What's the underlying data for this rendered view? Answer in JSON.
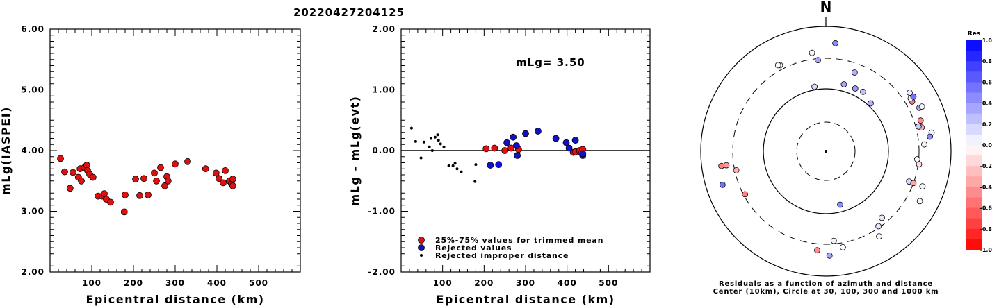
{
  "page_title": "20220427204125",
  "chart_data": [
    {
      "type": "scatter",
      "xlabel": "Epicentral distance (km)",
      "ylabel": "mLg(IASPEI)",
      "xlim": [
        0,
        600
      ],
      "ylim": [
        2.0,
        6.0
      ],
      "xticks": [
        "100",
        "200",
        "300",
        "400",
        "500"
      ],
      "yticks": [
        "2.00",
        "3.00",
        "4.00",
        "5.00",
        "6.00"
      ],
      "series": [
        {
          "color": "#dd1111",
          "points": [
            [
              25,
              3.87
            ],
            [
              35,
              3.65
            ],
            [
              48,
              3.38
            ],
            [
              55,
              3.64
            ],
            [
              68,
              3.56
            ],
            [
              72,
              3.7
            ],
            [
              75,
              3.5
            ],
            [
              82,
              3.72
            ],
            [
              88,
              3.76
            ],
            [
              90,
              3.67
            ],
            [
              95,
              3.61
            ],
            [
              103,
              3.56
            ],
            [
              115,
              3.25
            ],
            [
              125,
              3.25
            ],
            [
              130,
              3.29
            ],
            [
              135,
              3.2
            ],
            [
              145,
              3.15
            ],
            [
              178,
              2.99
            ],
            [
              180,
              3.27
            ],
            [
              205,
              3.53
            ],
            [
              215,
              3.26
            ],
            [
              225,
              3.54
            ],
            [
              235,
              3.27
            ],
            [
              250,
              3.63
            ],
            [
              255,
              3.5
            ],
            [
              265,
              3.72
            ],
            [
              275,
              3.42
            ],
            [
              280,
              3.57
            ],
            [
              283,
              3.5
            ],
            [
              300,
              3.78
            ],
            [
              330,
              3.82
            ],
            [
              373,
              3.7
            ],
            [
              398,
              3.63
            ],
            [
              405,
              3.54
            ],
            [
              415,
              3.47
            ],
            [
              420,
              3.67
            ],
            [
              430,
              3.5
            ],
            [
              435,
              3.45
            ],
            [
              438,
              3.53
            ],
            [
              438,
              3.42
            ]
          ]
        }
      ]
    },
    {
      "type": "scatter",
      "xlabel": "Epicentral distance (km)",
      "ylabel": "mLg - mLg(evt)",
      "xlim": [
        0,
        600
      ],
      "ylim": [
        -2.0,
        2.0
      ],
      "xticks": [
        "100",
        "200",
        "300",
        "400",
        "500"
      ],
      "yticks": [
        "-2.00",
        "-1.00",
        "0.00",
        "1.00",
        "2.00"
      ],
      "annotation": "mLg= 3.50",
      "legend": [
        {
          "label": "25%-75% values for trimmed mean",
          "color": "#dd1111"
        },
        {
          "label": "Rejected values",
          "color": "#1111cc"
        },
        {
          "label": "Rejected improper distance",
          "color": "#000000"
        }
      ],
      "series": [
        {
          "color": "#dd1111",
          "points": [
            [
              205,
              0.03
            ],
            [
              225,
              0.04
            ],
            [
              250,
              0.0
            ],
            [
              265,
              0.04
            ],
            [
              283,
              0.02
            ],
            [
              415,
              -0.03
            ],
            [
              420,
              -0.02
            ],
            [
              430,
              0.0
            ],
            [
              435,
              -0.04
            ],
            [
              438,
              0.02
            ]
          ]
        },
        {
          "color": "#1111cc",
          "points": [
            [
              215,
              -0.24
            ],
            [
              235,
              -0.23
            ],
            [
              255,
              0.13
            ],
            [
              270,
              0.22
            ],
            [
              278,
              0.08
            ],
            [
              280,
              -0.08
            ],
            [
              300,
              0.28
            ],
            [
              330,
              0.32
            ],
            [
              373,
              0.2
            ],
            [
              398,
              0.13
            ],
            [
              405,
              0.04
            ],
            [
              420,
              0.17
            ],
            [
              438,
              -0.08
            ],
            [
              438,
              -0.05
            ]
          ]
        },
        {
          "color": "#000000",
          "points": [
            [
              25,
              0.37
            ],
            [
              35,
              0.15
            ],
            [
              48,
              -0.12
            ],
            [
              55,
              0.14
            ],
            [
              68,
              0.06
            ],
            [
              72,
              0.2
            ],
            [
              75,
              0.0
            ],
            [
              82,
              0.22
            ],
            [
              88,
              0.26
            ],
            [
              90,
              0.17
            ],
            [
              95,
              0.11
            ],
            [
              103,
              0.06
            ],
            [
              115,
              -0.25
            ],
            [
              125,
              -0.25
            ],
            [
              130,
              -0.21
            ],
            [
              135,
              -0.3
            ],
            [
              145,
              -0.35
            ],
            [
              178,
              -0.51
            ],
            [
              180,
              -0.23
            ]
          ]
        }
      ]
    },
    {
      "type": "polar",
      "north_label": "N",
      "caption_lines": [
        "Residuals as a function of azimuth and distance",
        "Center (10km), Circle at 30, 100, 300 and 1000 km"
      ],
      "colorbar": {
        "title": "Res",
        "ticks": [
          "1.0",
          "0.8",
          "0.6",
          "0.4",
          "0.2",
          "0.0",
          "-0.2",
          "-0.4",
          "-0.6",
          "-0.8",
          "-1.0"
        ]
      },
      "stations": [
        {
          "azimuth": 332,
          "distance": 400,
          "residual": 0.05
        },
        {
          "azimuth": 331,
          "distance": 420,
          "residual": 0.02
        },
        {
          "azimuth": 352,
          "distance": 440,
          "residual": 0.03
        },
        {
          "azimuth": 5,
          "distance": 640,
          "residual": 0.45
        },
        {
          "azimuth": 15,
          "distance": 145,
          "residual": 0.35
        },
        {
          "azimuth": 25,
          "distance": 145,
          "residual": 0.4
        },
        {
          "azimuth": 32,
          "distance": 150,
          "residual": 0.25
        },
        {
          "azimuth": 43,
          "distance": 120,
          "residual": 0.3
        },
        {
          "azimuth": 60,
          "distance": 440,
          "residual": -0.55
        },
        {
          "azimuth": 58,
          "distance": 450,
          "residual": 0.05
        },
        {
          "azimuth": 55,
          "distance": 500,
          "residual": 0.07
        },
        {
          "azimuth": 58,
          "distance": 520,
          "residual": 0.55
        },
        {
          "azimuth": 65,
          "distance": 520,
          "residual": 0.3
        },
        {
          "azimuth": 72,
          "distance": 440,
          "residual": -0.45
        },
        {
          "azimuth": 65,
          "distance": 580,
          "residual": 0.05
        },
        {
          "azimuth": 76,
          "distance": 420,
          "residual": -0.35
        },
        {
          "azimuth": 80,
          "distance": 610,
          "residual": 0.05
        },
        {
          "azimuth": 86,
          "distance": 420,
          "residual": 0.05
        },
        {
          "azimuth": 82,
          "distance": 560,
          "residual": 0.45
        },
        {
          "azimuth": 95,
          "distance": 290,
          "residual": 0.04
        },
        {
          "azimuth": 110,
          "distance": 270,
          "residual": 0.15
        },
        {
          "azimuth": 110,
          "distance": 300,
          "residual": -0.35
        },
        {
          "azimuth": 110,
          "distance": 510,
          "residual": 0.05
        },
        {
          "azimuth": 118,
          "distance": 590,
          "residual": 0.03
        },
        {
          "azimuth": 140,
          "distance": 260,
          "residual": 0.1
        },
        {
          "azimuth": 145,
          "distance": 290,
          "residual": 0.1
        },
        {
          "azimuth": 148,
          "distance": 460,
          "residual": 0.03
        },
        {
          "azimuth": 165,
          "distance": 85,
          "residual": 0.45
        },
        {
          "azimuth": 175,
          "distance": 280,
          "residual": 0.05
        },
        {
          "azimuth": 185,
          "distance": 440,
          "residual": -0.45
        },
        {
          "azimuth": 178,
          "distance": 550,
          "residual": 0.35
        },
        {
          "azimuth": 258,
          "distance": 290,
          "residual": -0.3
        },
        {
          "azimuth": 262,
          "distance": 460,
          "residual": -0.4
        },
        {
          "azimuth": 242,
          "distance": 290,
          "residual": -0.5
        },
        {
          "azimuth": 262,
          "distance": 570,
          "residual": -0.5
        },
        {
          "azimuth": 252,
          "distance": 640,
          "residual": 0.55
        },
        {
          "azimuth": 355,
          "distance": 290,
          "residual": 0.35
        },
        {
          "azimuth": 350,
          "distance": 120,
          "residual": 0.15
        },
        {
          "azimuth": 20,
          "distance": 240,
          "residual": 0.3
        },
        {
          "azimuth": 75,
          "distance": 360,
          "residual": 0.2
        },
        {
          "azimuth": 98,
          "distance": 320,
          "residual": -0.15
        },
        {
          "azimuth": 170,
          "distance": 400,
          "residual": 0.02
        }
      ]
    }
  ]
}
